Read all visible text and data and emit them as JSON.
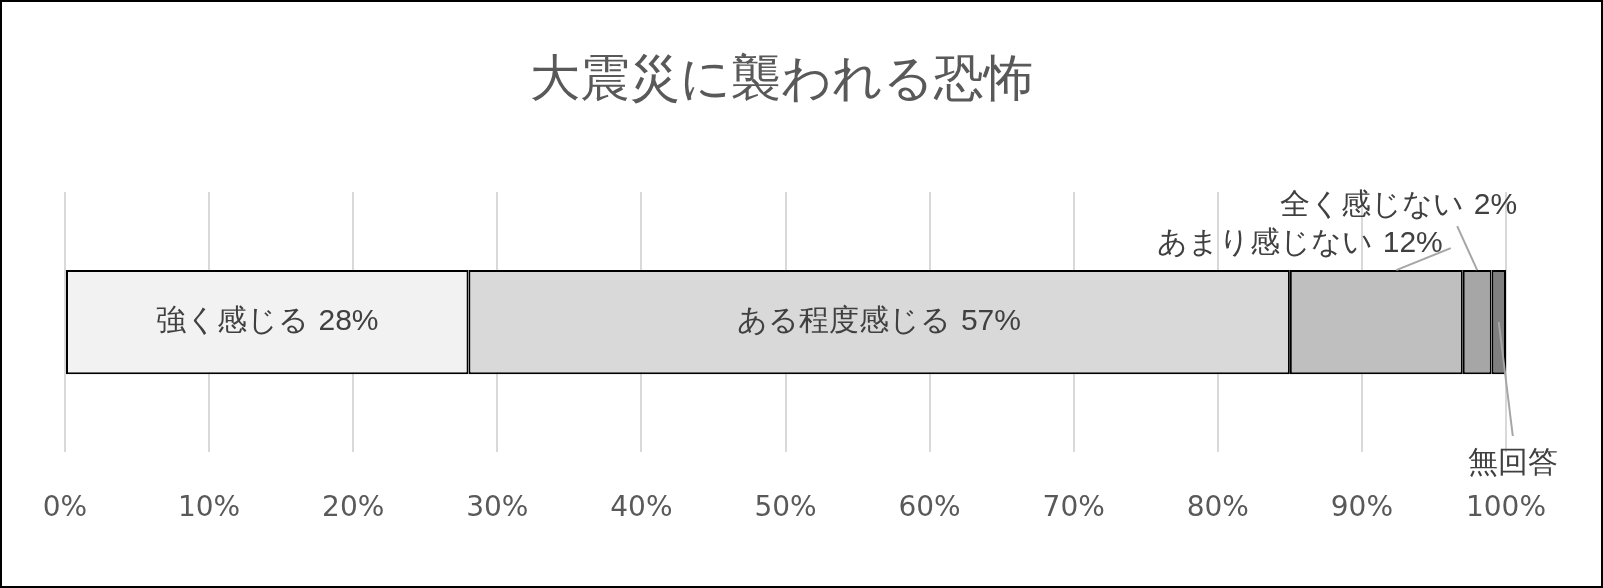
{
  "chart_data": {
    "type": "bar",
    "orientation": "horizontal",
    "stacked": true,
    "title": "大震災に襲われる恐怖",
    "categories": [
      null
    ],
    "series": [
      {
        "name": "強く感じる",
        "color": "#f2f2f2",
        "values": [
          28
        ],
        "value_labels": [
          "28%"
        ]
      },
      {
        "name": "ある程度感じる",
        "color": "#d9d9d9",
        "values": [
          57
        ],
        "value_labels": [
          "57%"
        ]
      },
      {
        "name": "あまり感じない",
        "color": "#bfbfbf",
        "values": [
          12
        ],
        "value_labels": [
          "12%"
        ]
      },
      {
        "name": "全く感じない",
        "color": "#a6a6a6",
        "values": [
          2
        ],
        "value_labels": [
          "2%"
        ]
      },
      {
        "name": "無回答",
        "color": "#7f7f7f",
        "values": [
          1
        ],
        "value_labels": [
          null
        ]
      }
    ],
    "xlim": [
      0,
      100
    ],
    "xticks": [
      {
        "value": 0,
        "label": "0%"
      },
      {
        "value": 10,
        "label": "10%"
      },
      {
        "value": 20,
        "label": "20%"
      },
      {
        "value": 30,
        "label": "30%"
      },
      {
        "value": 40,
        "label": "40%"
      },
      {
        "value": 50,
        "label": "50%"
      },
      {
        "value": 60,
        "label": "60%"
      },
      {
        "value": 70,
        "label": "70%"
      },
      {
        "value": 80,
        "label": "80%"
      },
      {
        "value": 90,
        "label": "90%"
      },
      {
        "value": 100,
        "label": "100%"
      }
    ],
    "grid": "x",
    "legend": false,
    "tick_labels": "x"
  }
}
